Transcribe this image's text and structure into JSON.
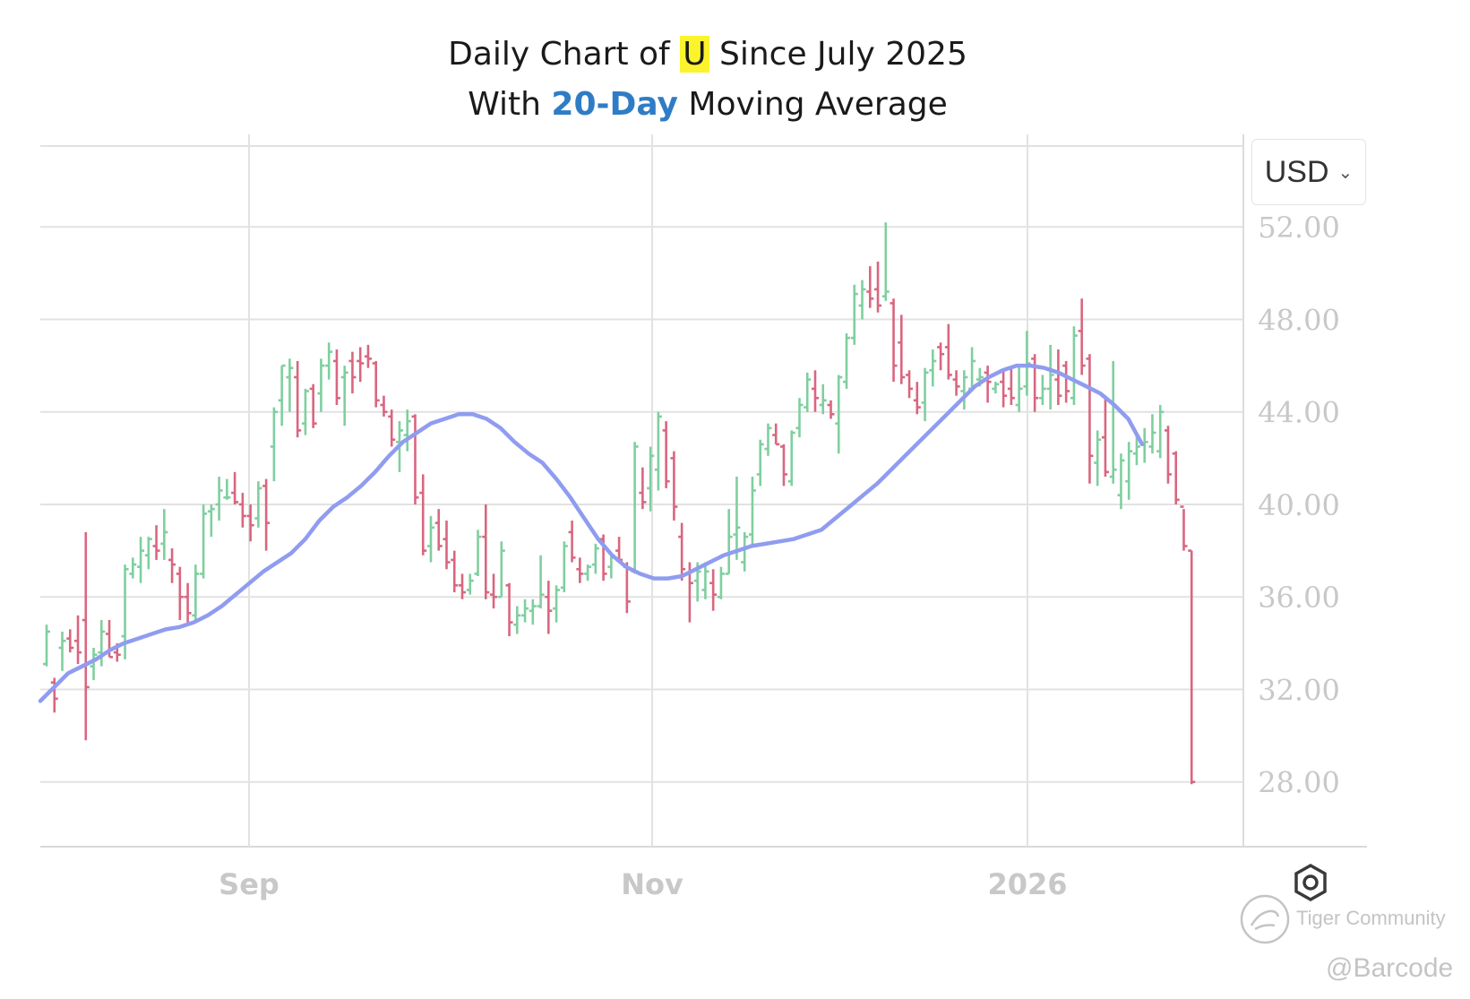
{
  "title": {
    "line1_pre": "Daily Chart of ",
    "ticker": "U",
    "line1_post": " Since July 2025",
    "line2_pre": "With ",
    "ma_label": "20-Day",
    "line2_post": " Moving Average"
  },
  "currency_selector": {
    "label": "USD",
    "icon": "chevron-down-icon"
  },
  "settings_icon": "gear-icon",
  "watermark": {
    "community": "Tiger Community",
    "handle": "@Barcode",
    "icon": "tiger-logo-icon"
  },
  "colors": {
    "up": "#7fcf9f",
    "down": "#d9667f",
    "ma": "#8f9cf0",
    "grid": "#e2e2e2",
    "axis_text": "#c8c8c8"
  },
  "chart_data": {
    "type": "ohlc",
    "ticker": "U",
    "x_tick_labels": [
      "Sep",
      "Nov",
      "2026"
    ],
    "y_tick_labels": [
      "52.00",
      "48.00",
      "44.00",
      "40.00",
      "36.00",
      "32.00",
      "28.00"
    ],
    "ylim": [
      25.2,
      56
    ],
    "grid": true,
    "series": [
      {
        "type": "ohlc",
        "values": [
          [
            33.1,
            34.8,
            33.0,
            34.5
          ],
          [
            32.3,
            32.5,
            31.0,
            31.6
          ],
          [
            33.8,
            34.5,
            32.8,
            34.1
          ],
          [
            34.2,
            34.6,
            33.6,
            33.8
          ],
          [
            34.1,
            35.2,
            33.1,
            33.6
          ],
          [
            35.0,
            38.8,
            29.8,
            32.1
          ],
          [
            33.0,
            33.8,
            32.4,
            33.5
          ],
          [
            33.6,
            35.0,
            33.0,
            34.5
          ],
          [
            34.4,
            35.0,
            33.4,
            33.4
          ],
          [
            33.6,
            34.0,
            33.2,
            33.5
          ],
          [
            34.3,
            37.4,
            33.3,
            37.2
          ],
          [
            37.0,
            37.7,
            36.8,
            37.4
          ],
          [
            37.3,
            38.6,
            36.6,
            38.0
          ],
          [
            37.8,
            38.6,
            37.2,
            38.5
          ],
          [
            38.2,
            39.1,
            37.6,
            38.0
          ],
          [
            38.3,
            39.8,
            37.6,
            38.8
          ],
          [
            37.6,
            38.1,
            36.6,
            37.4
          ],
          [
            37.0,
            37.3,
            35.0,
            36.0
          ],
          [
            36.0,
            36.6,
            34.9,
            35.3
          ],
          [
            35.2,
            37.4,
            35.0,
            37.0
          ],
          [
            37.0,
            40.0,
            36.8,
            39.6
          ],
          [
            39.7,
            40.0,
            38.6,
            39.8
          ],
          [
            40.0,
            41.2,
            39.3,
            40.6
          ],
          [
            40.3,
            41.1,
            40.2,
            40.3
          ],
          [
            40.5,
            41.4,
            40.0,
            40.1
          ],
          [
            40.0,
            40.5,
            39.0,
            39.5
          ],
          [
            39.5,
            40.0,
            38.4,
            39.1
          ],
          [
            39.4,
            41.0,
            39.0,
            40.7
          ],
          [
            40.8,
            41.1,
            38.0,
            39.2
          ],
          [
            42.5,
            44.2,
            41.0,
            44.0
          ],
          [
            44.5,
            46.0,
            43.4,
            46.0
          ],
          [
            45.5,
            46.3,
            44.0,
            45.9
          ],
          [
            45.5,
            46.2,
            42.9,
            43.2
          ],
          [
            43.5,
            45.0,
            43.0,
            44.9
          ],
          [
            45.0,
            45.2,
            43.3,
            43.5
          ],
          [
            44.8,
            46.3,
            44.0,
            46.0
          ],
          [
            46.0,
            47.0,
            45.4,
            46.6
          ],
          [
            46.2,
            46.7,
            44.3,
            44.6
          ],
          [
            45.5,
            46.0,
            43.4,
            45.7
          ],
          [
            46.2,
            46.6,
            44.8,
            45.5
          ],
          [
            46.2,
            46.8,
            45.3,
            46.1
          ],
          [
            46.4,
            46.9,
            45.9,
            46.3
          ],
          [
            46.1,
            46.2,
            44.2,
            44.5
          ],
          [
            44.3,
            44.7,
            43.8,
            44.0
          ],
          [
            43.8,
            44.1,
            42.5,
            42.8
          ],
          [
            42.7,
            43.6,
            41.4,
            43.2
          ],
          [
            43.0,
            44.1,
            42.3,
            43.6
          ],
          [
            43.8,
            43.9,
            40.0,
            40.3
          ],
          [
            40.5,
            41.3,
            37.8,
            38.0
          ],
          [
            38.2,
            39.5,
            37.5,
            39.0
          ],
          [
            39.2,
            39.8,
            38.0,
            38.2
          ],
          [
            38.5,
            39.3,
            37.2,
            37.5
          ],
          [
            37.6,
            38.0,
            36.2,
            36.5
          ],
          [
            36.5,
            37.0,
            35.9,
            36.2
          ],
          [
            36.3,
            37.0,
            36.1,
            36.7
          ],
          [
            37.0,
            38.9,
            36.9,
            38.6
          ],
          [
            38.6,
            40.0,
            35.9,
            36.2
          ],
          [
            36.1,
            37.0,
            35.5,
            36.0
          ],
          [
            36.0,
            38.4,
            36.0,
            38.0
          ],
          [
            36.5,
            36.6,
            34.3,
            34.9
          ],
          [
            34.8,
            35.6,
            34.4,
            35.2
          ],
          [
            35.2,
            35.9,
            34.9,
            35.5
          ],
          [
            35.4,
            35.9,
            34.8,
            35.6
          ],
          [
            35.6,
            37.8,
            35.5,
            36.1
          ],
          [
            36.0,
            36.7,
            34.4,
            35.4
          ],
          [
            35.5,
            36.5,
            34.9,
            36.3
          ],
          [
            36.4,
            38.4,
            36.2,
            38.2
          ],
          [
            38.8,
            39.3,
            37.5,
            37.7
          ],
          [
            37.2,
            37.7,
            36.6,
            37.0
          ],
          [
            37.0,
            37.4,
            36.7,
            37.3
          ],
          [
            37.4,
            38.3,
            37.0,
            38.1
          ],
          [
            38.5,
            38.7,
            36.7,
            37.0
          ],
          [
            37.3,
            37.9,
            36.8,
            37.7
          ],
          [
            38.0,
            38.6,
            37.6,
            37.6
          ],
          [
            37.3,
            37.5,
            35.3,
            35.8
          ],
          [
            37.1,
            42.7,
            37.0,
            42.5
          ],
          [
            40.5,
            41.6,
            39.8,
            40.1
          ],
          [
            40.7,
            42.5,
            39.7,
            42.1
          ],
          [
            41.5,
            44.0,
            40.6,
            43.8
          ],
          [
            43.2,
            43.6,
            40.7,
            41.0
          ],
          [
            42.0,
            42.3,
            39.3,
            39.9
          ],
          [
            38.6,
            39.2,
            36.7,
            37.2
          ],
          [
            37.0,
            37.5,
            34.9,
            36.6
          ],
          [
            36.7,
            37.5,
            35.8,
            37.1
          ],
          [
            36.3,
            37.5,
            35.9,
            37.1
          ],
          [
            36.6,
            37.2,
            35.4,
            36.1
          ],
          [
            36.0,
            37.3,
            35.9,
            37.0
          ],
          [
            37.0,
            39.8,
            37.0,
            38.6
          ],
          [
            38.7,
            41.2,
            37.6,
            39.0
          ],
          [
            37.5,
            38.8,
            37.1,
            38.6
          ],
          [
            38.7,
            41.2,
            38.2,
            40.6
          ],
          [
            41.3,
            42.8,
            40.8,
            42.6
          ],
          [
            42.4,
            43.5,
            42.1,
            43.3
          ],
          [
            43.0,
            43.5,
            42.6,
            42.6
          ],
          [
            42.5,
            42.6,
            40.8,
            41.3
          ],
          [
            41.0,
            43.2,
            40.8,
            43.1
          ],
          [
            43.3,
            44.6,
            42.9,
            44.3
          ],
          [
            44.2,
            45.7,
            44.0,
            45.4
          ],
          [
            45.0,
            45.8,
            44.0,
            44.6
          ],
          [
            44.3,
            45.2,
            43.9,
            44.5
          ],
          [
            44.3,
            44.5,
            43.7,
            43.9
          ],
          [
            43.5,
            45.6,
            42.2,
            45.5
          ],
          [
            45.3,
            47.4,
            45.0,
            47.2
          ],
          [
            47.2,
            49.5,
            46.9,
            49.1
          ],
          [
            48.6,
            49.7,
            48.0,
            49.3
          ],
          [
            49.2,
            50.3,
            48.5,
            48.9
          ],
          [
            49.3,
            50.5,
            48.3,
            48.6
          ],
          [
            49.0,
            52.2,
            48.8,
            49.2
          ],
          [
            48.7,
            48.9,
            45.3,
            46.0
          ],
          [
            47.0,
            48.2,
            45.2,
            45.5
          ],
          [
            45.6,
            45.8,
            44.6,
            45.0
          ],
          [
            44.5,
            45.3,
            43.9,
            44.2
          ],
          [
            44.4,
            45.9,
            43.6,
            45.7
          ],
          [
            45.8,
            46.7,
            45.1,
            46.2
          ],
          [
            46.8,
            47.0,
            45.8,
            46.5
          ],
          [
            46.8,
            47.8,
            45.4,
            45.6
          ],
          [
            45.4,
            45.8,
            44.7,
            45.1
          ],
          [
            44.9,
            45.8,
            44.1,
            45.5
          ],
          [
            45.0,
            46.8,
            45.0,
            46.2
          ],
          [
            45.4,
            45.9,
            45.1,
            45.5
          ],
          [
            45.7,
            46.0,
            44.4,
            45.3
          ],
          [
            45.0,
            45.3,
            44.8,
            45.2
          ],
          [
            45.3,
            45.8,
            44.2,
            44.7
          ],
          [
            45.0,
            46.0,
            44.3,
            44.6
          ],
          [
            44.3,
            46.0,
            44.0,
            45.0
          ],
          [
            45.1,
            47.5,
            44.7,
            46.1
          ],
          [
            46.3,
            46.5,
            44.0,
            44.6
          ],
          [
            44.6,
            45.6,
            44.3,
            45.0
          ],
          [
            45.0,
            46.9,
            44.1,
            45.6
          ],
          [
            45.4,
            46.7,
            44.3,
            44.7
          ],
          [
            46.0,
            46.2,
            44.4,
            44.9
          ],
          [
            44.6,
            47.7,
            44.3,
            47.3
          ],
          [
            47.5,
            48.9,
            45.6,
            46.0
          ],
          [
            46.3,
            46.5,
            40.9,
            42.1
          ],
          [
            41.8,
            43.2,
            40.8,
            42.8
          ],
          [
            42.9,
            44.7,
            41.2,
            41.4
          ],
          [
            41.2,
            46.2,
            40.9,
            41.5
          ],
          [
            40.4,
            42.2,
            39.8,
            41.9
          ],
          [
            41.0,
            42.7,
            40.2,
            42.3
          ],
          [
            42.2,
            43.0,
            41.7,
            42.5
          ],
          [
            42.6,
            43.3,
            41.8,
            42.7
          ],
          [
            42.5,
            43.9,
            42.2,
            43.1
          ],
          [
            42.3,
            44.3,
            42.0,
            44.0
          ],
          [
            43.2,
            43.4,
            40.9,
            41.3
          ],
          [
            42.2,
            42.3,
            40.0,
            40.2
          ],
          [
            39.9,
            39.8,
            38.0,
            38.2
          ],
          [
            38.0,
            38.0,
            27.9,
            28.0
          ]
        ]
      },
      {
        "type": "line",
        "name": "20-Day Moving Average",
        "values": [
          31.5,
          32.1,
          32.7,
          33.0,
          33.3,
          33.7,
          34.0,
          34.2,
          34.4,
          34.6,
          34.7,
          34.9,
          35.2,
          35.6,
          36.1,
          36.6,
          37.1,
          37.5,
          37.9,
          38.5,
          39.3,
          39.9,
          40.3,
          40.8,
          41.4,
          42.1,
          42.7,
          43.1,
          43.5,
          43.7,
          43.9,
          43.9,
          43.7,
          43.3,
          42.7,
          42.2,
          41.8,
          41.1,
          40.3,
          39.4,
          38.5,
          37.8,
          37.3,
          37.0,
          36.8,
          36.8,
          36.9,
          37.2,
          37.5,
          37.8,
          38.0,
          38.2,
          38.3,
          38.4,
          38.5,
          38.7,
          38.9,
          39.4,
          39.9,
          40.4,
          40.9,
          41.5,
          42.1,
          42.7,
          43.3,
          43.9,
          44.5,
          45.1,
          45.5,
          45.8,
          46.0,
          46.0,
          45.9,
          45.7,
          45.4,
          45.1,
          44.8,
          44.3,
          43.7,
          42.6
        ]
      }
    ]
  }
}
